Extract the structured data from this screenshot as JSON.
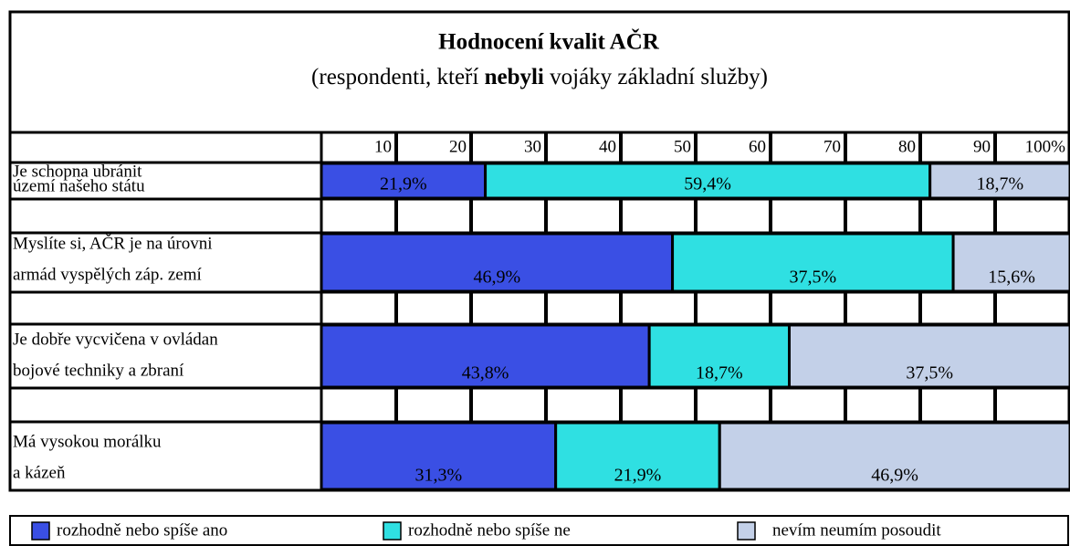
{
  "chart_data": {
    "type": "bar",
    "orientation": "horizontal",
    "stacked": true,
    "title": "Hodnocení kvalit AČR",
    "subtitle": [
      "(respondenti, kteří",
      "nebyli",
      "vojáky základní služby)"
    ],
    "categories": [
      [
        "Je schopna ubránit",
        "území našeho státu"
      ],
      [
        "Myslíte si, AČR je na úrovni",
        "armád vyspělých záp. zemí"
      ],
      [
        "Je dobře vycvičena v ovládan",
        "bojové techniky a zbraní"
      ],
      [
        "Má vysokou morálku",
        "a kázeň"
      ]
    ],
    "series": [
      {
        "name": "rozhodně nebo spíše ano",
        "color": "#3a4fe4",
        "values": [
          21.9,
          46.9,
          43.8,
          31.3
        ],
        "value_labels": [
          "21,9%",
          "46,9%",
          "43,8%",
          "31,3%"
        ]
      },
      {
        "name": "rozhodně nebo spíše ne",
        "color": "#2fe0e2",
        "values": [
          59.4,
          37.5,
          18.7,
          21.9
        ],
        "value_labels": [
          "59,4%",
          "37,5%",
          "18,7%",
          "21,9%"
        ]
      },
      {
        "name": "nevím neumím posoudit",
        "color": "#c3d0e8",
        "values": [
          18.7,
          15.6,
          37.5,
          46.9
        ],
        "value_labels": [
          "18,7%",
          "15,6%",
          "37,5%",
          "46,9%"
        ]
      }
    ],
    "xlim": [
      0,
      100
    ],
    "xticks": [
      10,
      20,
      30,
      40,
      50,
      60,
      70,
      80,
      90,
      {
        "value": 100,
        "label": "100%"
      }
    ]
  }
}
